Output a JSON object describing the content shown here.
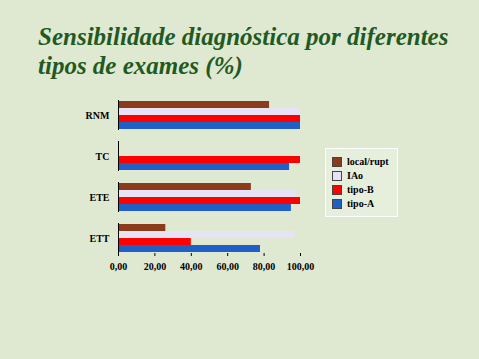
{
  "chart_data": {
    "type": "bar",
    "title": "Sensibilidade diagnóstica por diferentes tipos de exames (%)",
    "orientation": "horizontal",
    "categories": [
      "RNM",
      "TC",
      "ETE",
      "ETT"
    ],
    "series": [
      {
        "name": "local/rupt",
        "color": "#8b3a1c",
        "values": [
          83,
          null,
          73,
          26
        ]
      },
      {
        "name": "IAo",
        "color": "#e8e2f6",
        "values": [
          100,
          null,
          98,
          97
        ]
      },
      {
        "name": "tipo-B",
        "color": "#ff0000",
        "values": [
          100,
          100,
          100,
          40
        ]
      },
      {
        "name": "tipo-A",
        "color": "#1f5fc6",
        "values": [
          100,
          94,
          95,
          78
        ]
      }
    ],
    "xlim": [
      0,
      100
    ],
    "xticks": [
      {
        "value": 0,
        "label": "0,00"
      },
      {
        "value": 20,
        "label": "20,00"
      },
      {
        "value": 40,
        "label": "40,00"
      },
      {
        "value": 60,
        "label": "60,00"
      },
      {
        "value": 80,
        "label": "80,00"
      },
      {
        "value": 100,
        "label": "100,00"
      }
    ],
    "legend": "right"
  }
}
